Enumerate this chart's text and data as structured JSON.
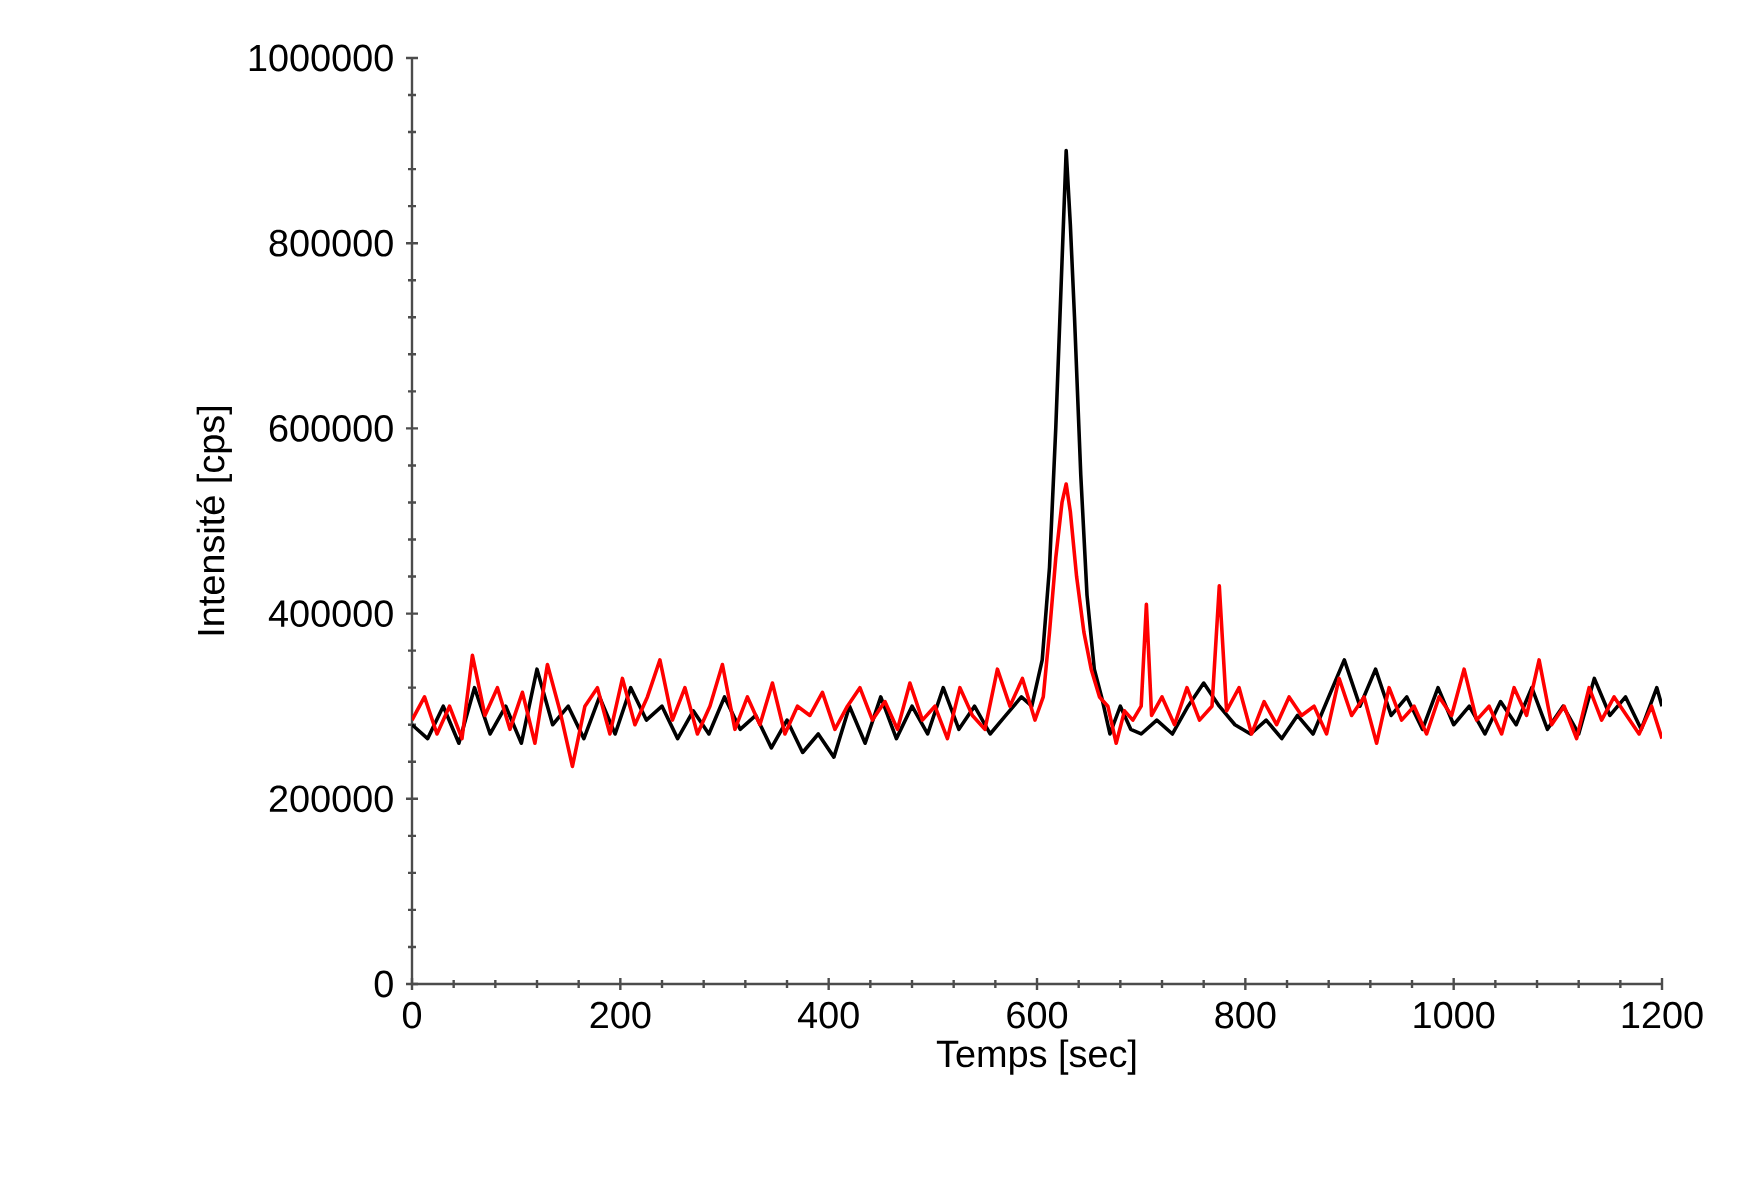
{
  "chart_data": {
    "type": "line",
    "xlabel": "Temps [sec]",
    "ylabel": "Intensité [cps]",
    "xlim": [
      0,
      1200
    ],
    "ylim": [
      0,
      1000000
    ],
    "xticks": [
      0,
      200,
      400,
      600,
      800,
      1000,
      1200
    ],
    "yticks": [
      0,
      200000,
      400000,
      600000,
      800000,
      1000000
    ],
    "grid": false,
    "marker": "none",
    "line_style": "solid",
    "series": [
      {
        "color": "#000000",
        "x": [
          0,
          15,
          30,
          45,
          60,
          75,
          90,
          105,
          120,
          135,
          150,
          165,
          180,
          195,
          210,
          225,
          240,
          255,
          270,
          285,
          300,
          315,
          330,
          345,
          360,
          375,
          390,
          405,
          420,
          435,
          450,
          465,
          480,
          495,
          510,
          525,
          540,
          555,
          570,
          585,
          595,
          605,
          612,
          618,
          624,
          628,
          632,
          636,
          642,
          648,
          655,
          662,
          670,
          680,
          690,
          700,
          715,
          730,
          745,
          760,
          775,
          790,
          805,
          820,
          835,
          850,
          865,
          880,
          895,
          910,
          925,
          940,
          955,
          970,
          985,
          1000,
          1015,
          1030,
          1045,
          1060,
          1075,
          1090,
          1105,
          1120,
          1135,
          1150,
          1165,
          1180,
          1195,
          1200
        ],
        "values": [
          280000,
          265000,
          300000,
          260000,
          320000,
          270000,
          300000,
          260000,
          340000,
          280000,
          300000,
          265000,
          310000,
          270000,
          320000,
          285000,
          300000,
          265000,
          295000,
          270000,
          310000,
          275000,
          290000,
          255000,
          285000,
          250000,
          270000,
          245000,
          300000,
          260000,
          310000,
          265000,
          300000,
          270000,
          320000,
          275000,
          300000,
          270000,
          290000,
          310000,
          300000,
          350000,
          450000,
          600000,
          780000,
          900000,
          820000,
          720000,
          550000,
          420000,
          340000,
          310000,
          270000,
          300000,
          275000,
          270000,
          285000,
          270000,
          300000,
          325000,
          300000,
          280000,
          270000,
          285000,
          265000,
          290000,
          270000,
          310000,
          350000,
          300000,
          340000,
          290000,
          310000,
          275000,
          320000,
          280000,
          300000,
          270000,
          305000,
          280000,
          320000,
          275000,
          300000,
          270000,
          330000,
          290000,
          310000,
          275000,
          320000,
          300000
        ]
      },
      {
        "color": "#ff0000",
        "x": [
          0,
          12,
          24,
          36,
          48,
          58,
          70,
          82,
          94,
          106,
          118,
          130,
          142,
          154,
          166,
          178,
          190,
          202,
          214,
          226,
          238,
          250,
          262,
          274,
          286,
          298,
          310,
          322,
          334,
          346,
          358,
          370,
          382,
          394,
          406,
          418,
          430,
          442,
          454,
          466,
          478,
          490,
          502,
          514,
          526,
          538,
          550,
          562,
          574,
          586,
          598,
          606,
          612,
          618,
          624,
          628,
          632,
          638,
          645,
          652,
          660,
          668,
          676,
          684,
          692,
          700,
          705,
          710,
          720,
          732,
          744,
          756,
          768,
          775,
          782,
          794,
          806,
          818,
          830,
          842,
          854,
          866,
          878,
          890,
          902,
          914,
          926,
          938,
          950,
          962,
          974,
          986,
          998,
          1010,
          1022,
          1034,
          1046,
          1058,
          1070,
          1082,
          1094,
          1106,
          1118,
          1130,
          1142,
          1154,
          1166,
          1178,
          1190,
          1200
        ],
        "values": [
          285000,
          310000,
          270000,
          300000,
          265000,
          355000,
          290000,
          320000,
          275000,
          315000,
          260000,
          345000,
          295000,
          235000,
          300000,
          320000,
          270000,
          330000,
          280000,
          310000,
          350000,
          285000,
          320000,
          270000,
          300000,
          345000,
          275000,
          310000,
          280000,
          325000,
          270000,
          300000,
          290000,
          315000,
          275000,
          300000,
          320000,
          285000,
          305000,
          275000,
          325000,
          285000,
          300000,
          265000,
          320000,
          290000,
          275000,
          340000,
          300000,
          330000,
          285000,
          310000,
          380000,
          460000,
          520000,
          540000,
          510000,
          440000,
          380000,
          340000,
          310000,
          300000,
          260000,
          295000,
          285000,
          300000,
          410000,
          290000,
          310000,
          280000,
          320000,
          285000,
          300000,
          430000,
          295000,
          320000,
          270000,
          305000,
          280000,
          310000,
          290000,
          300000,
          270000,
          330000,
          290000,
          310000,
          260000,
          320000,
          285000,
          300000,
          270000,
          310000,
          290000,
          340000,
          285000,
          300000,
          270000,
          320000,
          290000,
          350000,
          280000,
          300000,
          265000,
          320000,
          285000,
          310000,
          290000,
          270000,
          300000,
          265000
        ]
      }
    ]
  }
}
